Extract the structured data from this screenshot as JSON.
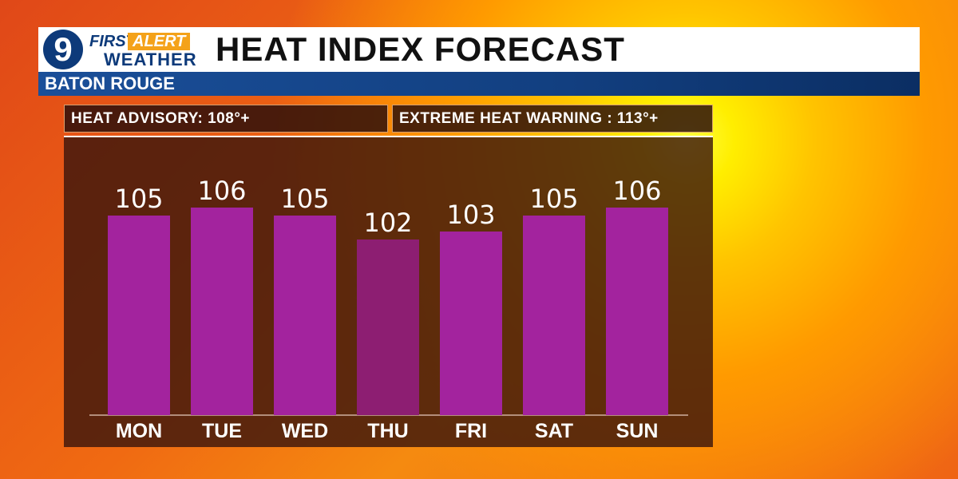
{
  "branding": {
    "logo_number": "9",
    "logo_first": "FIRST",
    "logo_alert": "ALERT",
    "logo_weather": "WEATHER",
    "title": "HEAT INDEX FORECAST",
    "location": "BATON ROUGE"
  },
  "thresholds": {
    "advisory_label": "HEAT ADVISORY: 108°+",
    "warning_label": "EXTREME HEAT WARNING : 113°+"
  },
  "colors": {
    "bar": "#a3239e",
    "bar_thu": "#8d1e72",
    "header_blue": "#0d3a7a",
    "alert_orange": "#f4a21a"
  },
  "chart_data": {
    "type": "bar",
    "title": "HEAT INDEX FORECAST",
    "categories": [
      "MON",
      "TUE",
      "WED",
      "THU",
      "FRI",
      "SAT",
      "SUN"
    ],
    "values": [
      105,
      106,
      105,
      102,
      103,
      105,
      106
    ],
    "value_labels": [
      "105",
      "106",
      "105",
      "102",
      "103",
      "105",
      "106"
    ],
    "xlabel": "",
    "ylabel": "",
    "ylim": [
      80,
      110
    ],
    "grid": false,
    "legend": "none"
  }
}
